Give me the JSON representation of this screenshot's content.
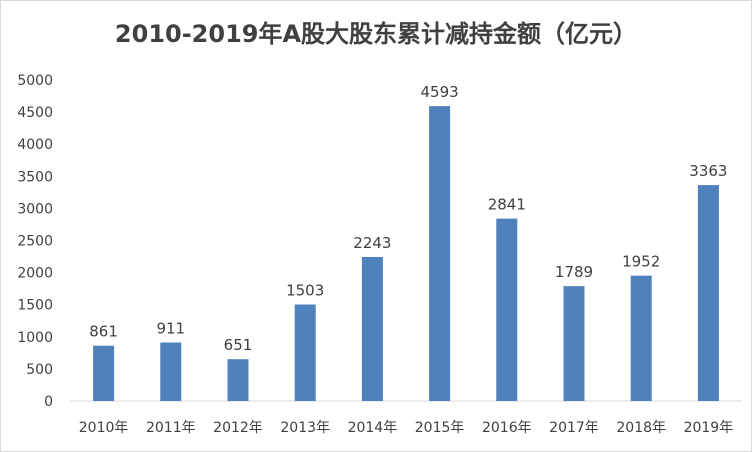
{
  "chart_data": {
    "type": "bar",
    "title": "2010-2019年A股大股东累计减持金额（亿元）",
    "categories": [
      "2010年",
      "2011年",
      "2012年",
      "2013年",
      "2014年",
      "2015年",
      "2016年",
      "2017年",
      "2018年",
      "2019年"
    ],
    "values": [
      861,
      911,
      651,
      1503,
      2243,
      4593,
      2841,
      1789,
      1952,
      3363
    ],
    "ylim": [
      0,
      5000
    ],
    "yticks": [
      0,
      500,
      1000,
      1500,
      2000,
      2500,
      3000,
      3500,
      4000,
      4500,
      5000
    ],
    "grid": false,
    "legend": "none",
    "bar_color": "#4f81bd",
    "xlabel": "",
    "ylabel": ""
  }
}
